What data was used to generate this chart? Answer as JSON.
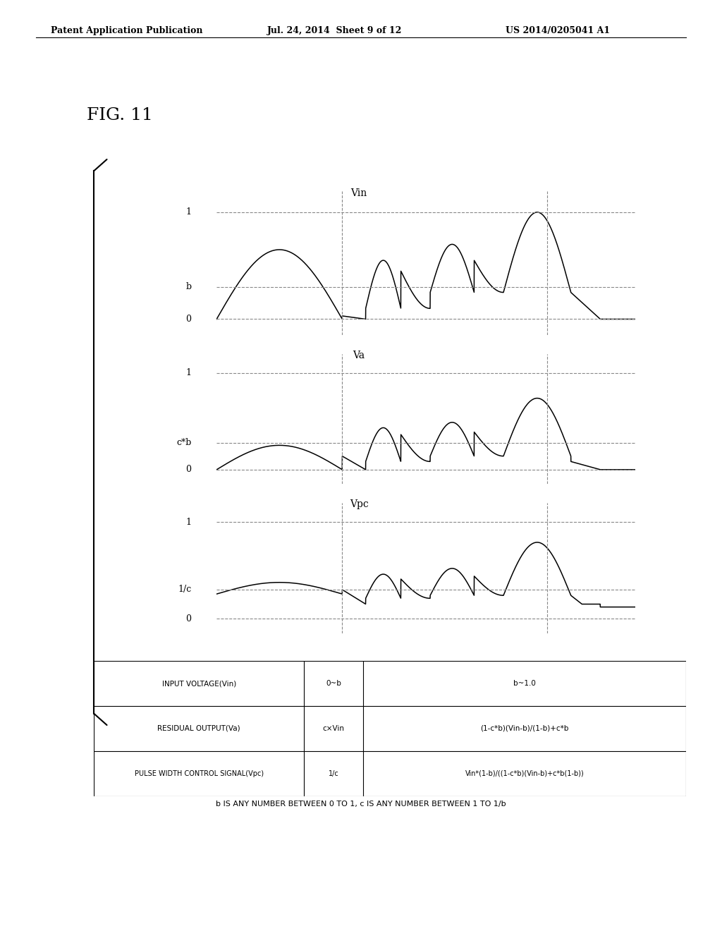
{
  "header_left": "Patent Application Publication",
  "header_mid": "Jul. 24, 2014  Sheet 9 of 12",
  "header_right": "US 2014/0205041 A1",
  "fig_label": "FIG. 11",
  "background_color": "#ffffff",
  "b_val": 0.3,
  "cb_val": 0.28,
  "inv_c_val": 0.3,
  "table_rows": [
    [
      "INPUT VOLTAGE(Vin)",
      "0~b",
      "b~1.0"
    ],
    [
      "RESIDUAL OUTPUT(Va)",
      "c×Vin",
      "(1-c*b)(Vin-b)/(1-b)+c*b"
    ],
    [
      "PULSE WIDTH CONTROL SIGNAL(Vpc)",
      "1/c",
      "Vin*(1-b)/((1-c*b)(Vin-b)+c*b(1-b))"
    ]
  ],
  "footnote": "b IS ANY NUMBER BETWEEN 0 TO 1, c IS ANY NUMBER BETWEEN 1 TO 1/b"
}
